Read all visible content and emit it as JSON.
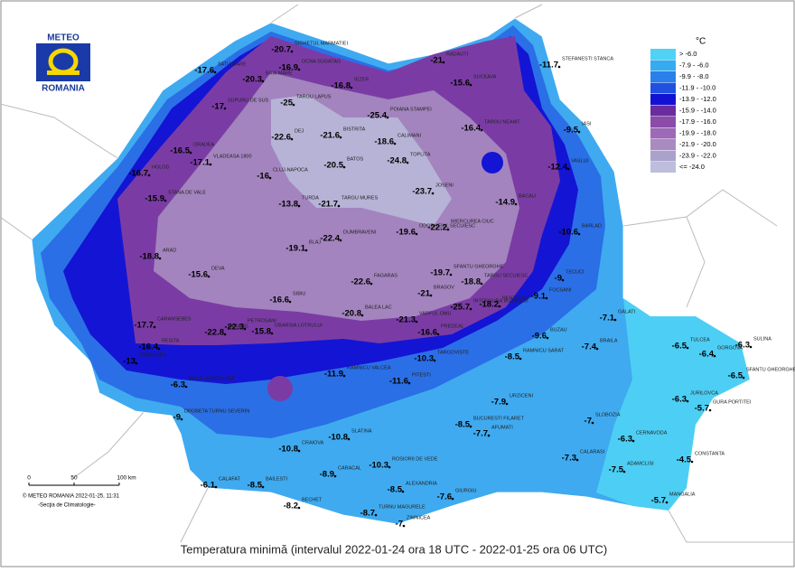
{
  "logo": {
    "top": "METEO",
    "bottom": "ROMANIA"
  },
  "legend": {
    "unit": "°C",
    "items": [
      {
        "label": "> -6.0",
        "color": "#4fd2f4"
      },
      {
        "label": "-7.9 - -6.0",
        "color": "#36abf0"
      },
      {
        "label": "-9.9 - -8.0",
        "color": "#2a80ea"
      },
      {
        "label": "-11.9 - -10.0",
        "color": "#2050e0"
      },
      {
        "label": "-13.9 - -12.0",
        "color": "#1212d4"
      },
      {
        "label": "-15.9 - -14.0",
        "color": "#6a2c9e"
      },
      {
        "label": "-17.9 - -16.0",
        "color": "#8a4ca8"
      },
      {
        "label": "-19.9 - -18.0",
        "color": "#9c6ab6"
      },
      {
        "label": "-21.9 - -20.0",
        "color": "#a98bc2"
      },
      {
        "label": "-23.9 - -22.0",
        "color": "#aaa2cc"
      },
      {
        "label": "<= -24.0",
        "color": "#bcbedc"
      }
    ]
  },
  "scale": {
    "ticks": [
      "0",
      "50",
      "100 km"
    ]
  },
  "credit": "© METEO ROMANIA 2022-01-25, 11:31",
  "department": "-Secţia de Climatologie-",
  "caption": "Temperatura minimă (intervalul 2022-01-24 ora 18 UTC - 2022-01-25 ora 06 UTC)",
  "stations": [
    {
      "name": "SIGHETUL MARMATIEI",
      "value": -20.7
    },
    {
      "name": "OCNA SUGATAG",
      "value": -16.9
    },
    {
      "name": "BAIA MARE",
      "value": -20.3
    },
    {
      "name": "SATU MARE",
      "value": -17.6
    },
    {
      "name": "SUPURU DE SUS",
      "value": -17
    },
    {
      "name": "TARGU LAPUS",
      "value": -25
    },
    {
      "name": "DEJ",
      "value": -22.6
    },
    {
      "name": "BISTRITA",
      "value": -21.6
    },
    {
      "name": "IEZER",
      "value": -16.8
    },
    {
      "name": "POIANA STAMPEI",
      "value": -25.4
    },
    {
      "name": "CALIMANI",
      "value": -18.6
    },
    {
      "name": "RADAUTI",
      "value": -21
    },
    {
      "name": "SUCEAVA",
      "value": -15.6
    },
    {
      "name": "STEFANESTI STANCA",
      "value": -11.7
    },
    {
      "name": "TARGU NEAMT",
      "value": -16.4
    },
    {
      "name": "IASI",
      "value": -9.5
    },
    {
      "name": "ORADEA",
      "value": -16.5
    },
    {
      "name": "HOLOD",
      "value": -16.7
    },
    {
      "name": "STANA DE VALE",
      "value": -15.9
    },
    {
      "name": "VLADEASA 1800",
      "value": -17.1
    },
    {
      "name": "CLUJ-NAPOCA",
      "value": -16
    },
    {
      "name": "BATOS",
      "value": -20.5
    },
    {
      "name": "TOPLITA",
      "value": -24.8
    },
    {
      "name": "JOSENI",
      "value": -23.7
    },
    {
      "name": "MIERCUREA CIUC",
      "value": -22.2
    },
    {
      "name": "BACAU",
      "value": -14.9
    },
    {
      "name": "TARGU MURES",
      "value": -21.7
    },
    {
      "name": "TURDA",
      "value": -13.8
    },
    {
      "name": "BLAJ",
      "value": -19.1
    },
    {
      "name": "DUMBRAVENI",
      "value": -22.4
    },
    {
      "name": "ODORHEIUL SECUIESC",
      "value": -19.6
    },
    {
      "name": "SFANTU GHEORGHE",
      "value": -19.7
    },
    {
      "name": "BRASOV",
      "value": -21
    },
    {
      "name": "FAGARAS",
      "value": -22.6
    },
    {
      "name": "TARGU SECUIESC",
      "value": -18.8
    },
    {
      "name": "INTORSURA BUZAULUI",
      "value": -25.7
    },
    {
      "name": "BALEA LAC",
      "value": -20.8
    },
    {
      "name": "VARFUL OMU",
      "value": -21.3
    },
    {
      "name": "PREDEAL",
      "value": -16.6
    },
    {
      "name": "PENTELEU",
      "value": -18.2
    },
    {
      "name": "FOCSANI",
      "value": -9.1
    },
    {
      "name": "TECUCI",
      "value": -9
    },
    {
      "name": "GALATI",
      "value": -7.1
    },
    {
      "name": "TULCEA",
      "value": -6.5
    },
    {
      "name": "SULINA",
      "value": -6.3
    },
    {
      "name": "GORGOVA",
      "value": -6.4
    },
    {
      "name": "SFANTU GHEORGHE",
      "value": -6.5
    },
    {
      "name": "JURILOVCA",
      "value": -6.3
    },
    {
      "name": "GURA PORTITEI",
      "value": -5.7
    },
    {
      "name": "CONSTANTA",
      "value": -4.5
    },
    {
      "name": "MANGALIA",
      "value": -5.7
    },
    {
      "name": "ADAMCLISI",
      "value": -7.5
    },
    {
      "name": "CERNAVODA",
      "value": -6.3
    },
    {
      "name": "CALARASI",
      "value": -7.3
    },
    {
      "name": "SLOBOZIA",
      "value": -7
    },
    {
      "name": "URZICENI",
      "value": -7.9
    },
    {
      "name": "BUCURESTI FILARET",
      "value": -8.5
    },
    {
      "name": "AFUMATI",
      "value": -7.7
    },
    {
      "name": "GIURGIU",
      "value": -7.6
    },
    {
      "name": "ALEXANDRIA",
      "value": -8.5
    },
    {
      "name": "TURNU MAGURELE",
      "value": -8.7
    },
    {
      "name": "ZIMNICEA",
      "value": -7
    },
    {
      "name": "ROSIORII DE VEDE",
      "value": -10.3
    },
    {
      "name": "CARACAL",
      "value": -8.9
    },
    {
      "name": "BECHET",
      "value": -8.2
    },
    {
      "name": "CALAFAT",
      "value": -6.1
    },
    {
      "name": "BAILESTI",
      "value": -8.5
    },
    {
      "name": "CRAIOVA",
      "value": -10.8
    },
    {
      "name": "SLATINA",
      "value": -10.8
    },
    {
      "name": "DROBETA TURNU SEVERIN",
      "value": -9
    },
    {
      "name": "BAILE HERCULANE",
      "value": -6.3
    },
    {
      "name": "CARANSEBES",
      "value": -17.7
    },
    {
      "name": "RESITA",
      "value": -16.4
    },
    {
      "name": "TIMISOARA",
      "value": -13
    },
    {
      "name": "ARAD",
      "value": -18.8
    },
    {
      "name": "DEVA",
      "value": -15.6
    },
    {
      "name": "PETROSANI",
      "value": -22.3
    },
    {
      "name": "PARANG",
      "value": -22.8
    },
    {
      "name": "OBARSIA LOTRULUI",
      "value": -15.8
    },
    {
      "name": "SIBIU",
      "value": -16.6
    },
    {
      "name": "RAMNICU VALCEA",
      "value": -11.9
    },
    {
      "name": "PITESTI",
      "value": -11.6
    },
    {
      "name": "TARGOVISTE",
      "value": -10.3
    },
    {
      "name": "BUZAU",
      "value": -9.6
    },
    {
      "name": "RAMNICU SARAT",
      "value": -8.5
    },
    {
      "name": "BRAILA",
      "value": -7.4
    },
    {
      "name": "VASLUI",
      "value": -12.4
    },
    {
      "name": "BARLAD",
      "value": -10.6
    }
  ]
}
